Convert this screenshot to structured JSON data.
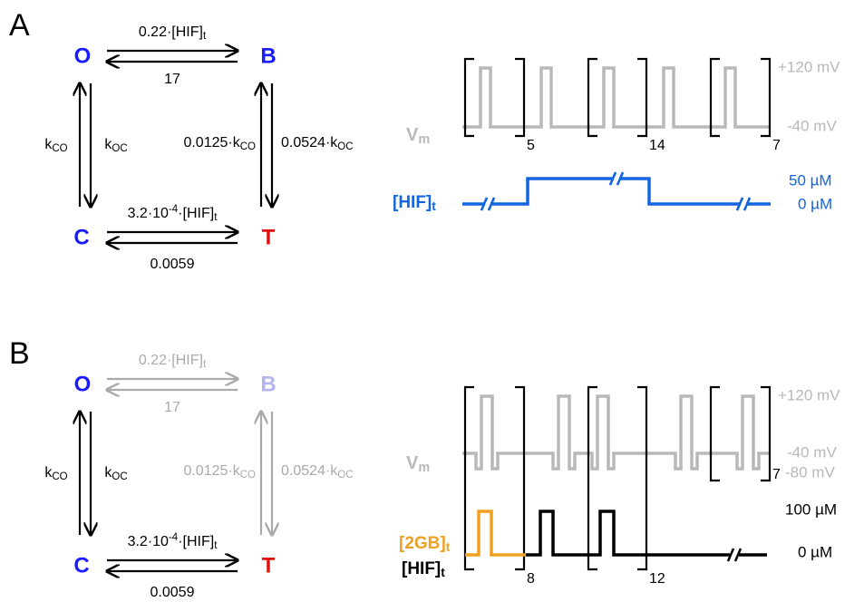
{
  "panel_a": {
    "label": "A",
    "states": [
      "O",
      "B",
      "C",
      "T"
    ],
    "rates": [
      [
        {
          "text": "0.22·[HIF]"
        },
        {
          "sub": "t"
        }
      ],
      [
        {
          "text": "17"
        }
      ],
      [
        {
          "text": "k"
        },
        {
          "sub": "CO"
        }
      ],
      [
        {
          "text": "k"
        },
        {
          "sub": "OC"
        }
      ],
      [
        {
          "text": "0.0125·k"
        },
        {
          "sub": "CO"
        }
      ],
      [
        {
          "text": "0.0524·k"
        },
        {
          "sub": "OC"
        }
      ],
      [
        {
          "text": "3.2·10"
        },
        {
          "sup": "-4"
        },
        {
          "text": "·[HIF]"
        },
        {
          "sub": "t"
        }
      ],
      [
        {
          "text": "0.0059"
        }
      ]
    ],
    "voltage": {
      "label": [
        {
          "text": "V"
        },
        {
          "sub": "m"
        }
      ],
      "levels": [
        "+120 mV",
        "-40 mV"
      ],
      "repeats": [
        "5",
        "14",
        "7"
      ]
    },
    "hif": {
      "label": [
        {
          "text": "[HIF]"
        },
        {
          "sub": "t"
        }
      ],
      "levels": [
        "50 µM",
        "0 µM"
      ]
    }
  },
  "panel_b": {
    "label": "B",
    "states": [
      "O",
      "B",
      "C",
      "T"
    ],
    "rates": [
      [
        {
          "text": "0.22·[HIF]"
        },
        {
          "sub": "t"
        }
      ],
      [
        {
          "text": "17"
        }
      ],
      [
        {
          "text": "k"
        },
        {
          "sub": "CO"
        }
      ],
      [
        {
          "text": "k"
        },
        {
          "sub": "OC"
        }
      ],
      [
        {
          "text": "0.0125·k"
        },
        {
          "sub": "CO"
        }
      ],
      [
        {
          "text": "0.0524·k"
        },
        {
          "sub": "OC"
        }
      ],
      [
        {
          "text": "3.2·10"
        },
        {
          "sup": "-4"
        },
        {
          "text": "·[HIF]"
        },
        {
          "sub": "t"
        }
      ],
      [
        {
          "text": "0.0059"
        }
      ]
    ],
    "voltage": {
      "label": [
        {
          "text": "V"
        },
        {
          "sub": "m"
        }
      ],
      "levels": [
        "+120 mV",
        "-40 mV",
        "-80 mV"
      ],
      "repeats": [
        "8",
        "12",
        "7"
      ]
    },
    "gb": {
      "label": [
        {
          "text": "[2GB]"
        },
        {
          "sub": "t"
        }
      ]
    },
    "hif": {
      "label": [
        {
          "text": "[HIF]"
        },
        {
          "sub": "t"
        }
      ],
      "levels": [
        "100 µM",
        "0 µM"
      ]
    }
  }
}
